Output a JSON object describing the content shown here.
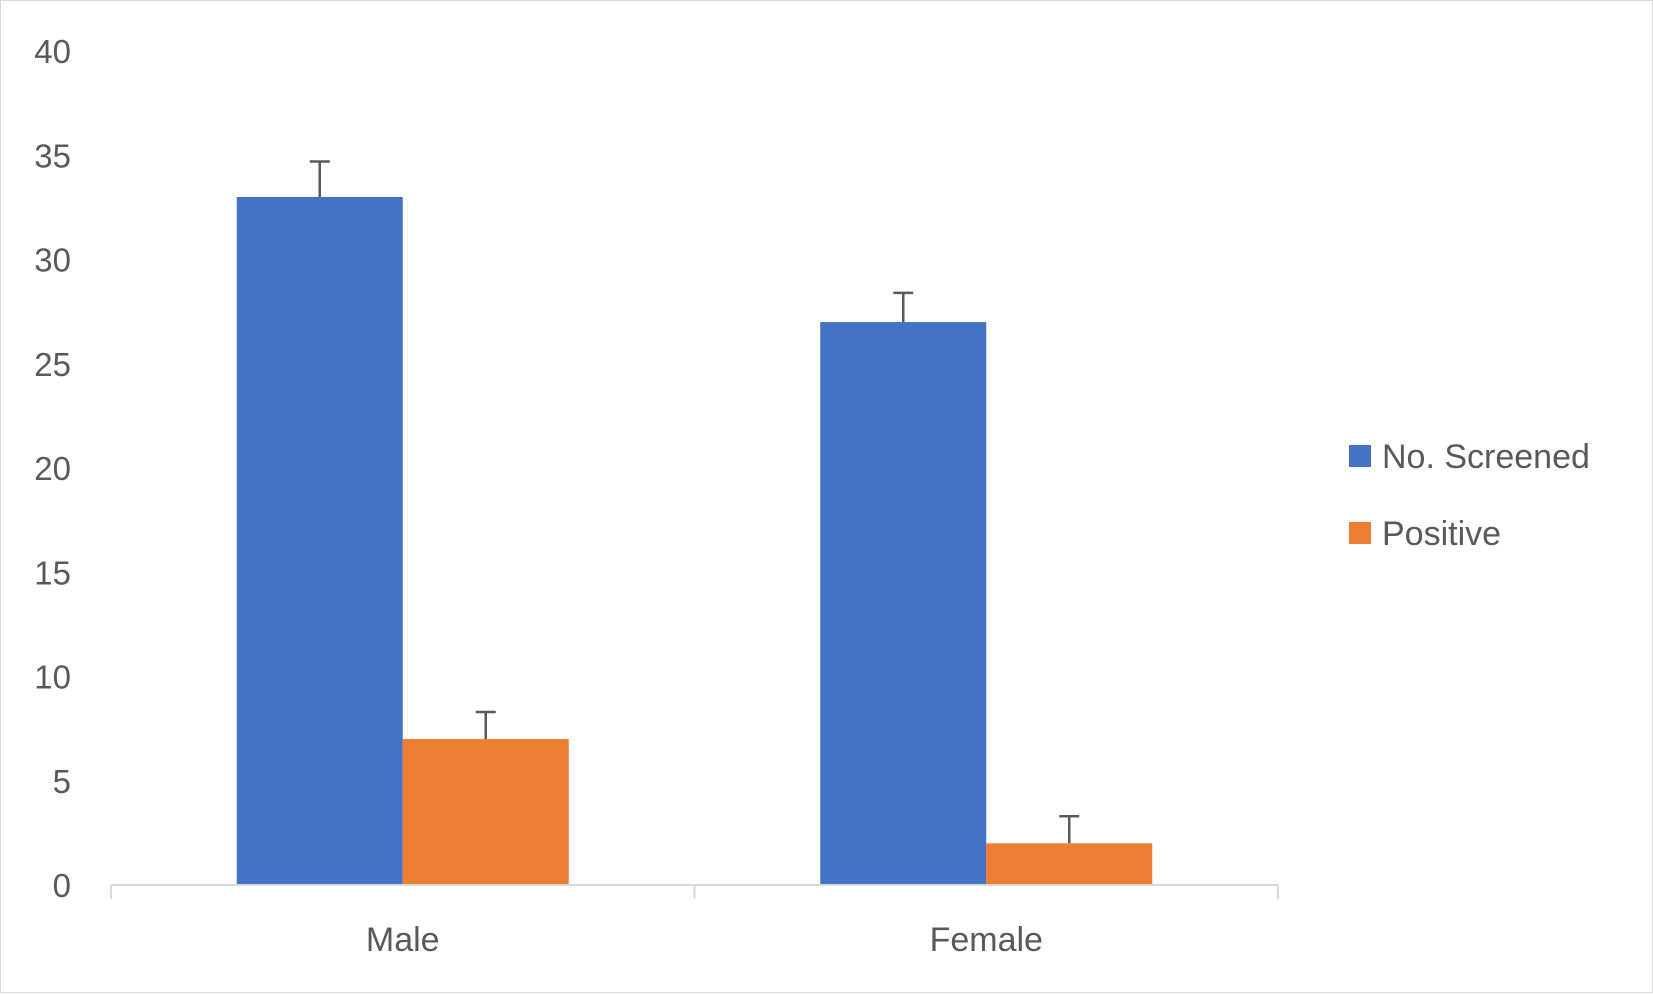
{
  "chart_data": {
    "type": "bar",
    "title": "",
    "xlabel": "",
    "ylabel": "",
    "categories": [
      "Male",
      "Female"
    ],
    "ylim": [
      0,
      40
    ],
    "yticks": [
      0,
      5,
      10,
      15,
      20,
      25,
      30,
      35,
      40
    ],
    "gridlines": false,
    "legend_position": "right",
    "series": [
      {
        "name": "No. Screened",
        "color": "#4472C4",
        "values": [
          33,
          27
        ],
        "error": [
          1.7,
          1.4
        ]
      },
      {
        "name": "Positive",
        "color": "#ED7D31",
        "values": [
          7,
          2
        ],
        "error": [
          1.3,
          1.3
        ]
      }
    ]
  }
}
